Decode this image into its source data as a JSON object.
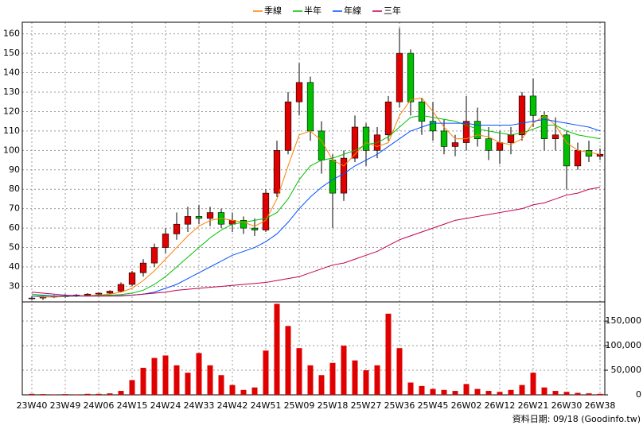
{
  "chart_data": {
    "type": "candlestick",
    "categories": [
      "23W40",
      null,
      null,
      "23W49",
      null,
      null,
      "24W06",
      null,
      null,
      "24W15",
      null,
      null,
      "24W24",
      null,
      null,
      "24W33",
      null,
      null,
      "24W42",
      null,
      null,
      "24W51",
      null,
      null,
      "25W09",
      null,
      null,
      "25W18",
      null,
      null,
      "25W27",
      null,
      null,
      "25W36",
      null,
      null,
      "25W45",
      null,
      null,
      "26W02",
      null,
      null,
      "26W12",
      null,
      null,
      "26W21",
      null,
      null,
      "26W30",
      null,
      null,
      "26W38"
    ],
    "ohlc": [
      [
        24,
        25,
        23,
        24
      ],
      [
        24,
        25,
        23,
        24.5
      ],
      [
        24.5,
        25.5,
        24,
        25
      ],
      [
        25,
        26,
        24,
        25
      ],
      [
        25,
        26,
        24.5,
        25.5
      ],
      [
        25.5,
        26.5,
        25,
        26
      ],
      [
        26,
        27,
        25,
        26.5
      ],
      [
        26.5,
        28,
        26,
        27.5
      ],
      [
        27.5,
        32,
        27,
        31
      ],
      [
        31,
        38,
        30,
        37
      ],
      [
        37,
        44,
        35,
        42
      ],
      [
        42,
        52,
        40,
        50
      ],
      [
        50,
        60,
        47,
        57
      ],
      [
        57,
        68,
        54,
        62
      ],
      [
        62,
        71,
        58,
        66
      ],
      [
        66,
        72,
        62,
        65
      ],
      [
        65,
        71,
        61,
        68
      ],
      [
        68,
        70,
        60,
        62
      ],
      [
        62,
        68,
        58,
        64
      ],
      [
        64,
        66,
        57,
        60
      ],
      [
        60,
        65,
        56,
        59
      ],
      [
        59,
        80,
        58,
        78
      ],
      [
        78,
        105,
        76,
        100
      ],
      [
        100,
        130,
        98,
        125
      ],
      [
        125,
        145,
        118,
        135
      ],
      [
        135,
        138,
        105,
        110
      ],
      [
        110,
        115,
        88,
        95
      ],
      [
        95,
        98,
        60,
        78
      ],
      [
        78,
        100,
        74,
        96
      ],
      [
        96,
        118,
        94,
        112
      ],
      [
        112,
        114,
        92,
        100
      ],
      [
        100,
        112,
        96,
        108
      ],
      [
        108,
        128,
        105,
        125
      ],
      [
        125,
        163,
        122,
        150
      ],
      [
        150,
        152,
        118,
        125
      ],
      [
        125,
        127,
        108,
        115
      ],
      [
        115,
        125,
        105,
        110
      ],
      [
        110,
        116,
        98,
        102
      ],
      [
        102,
        108,
        97,
        104
      ],
      [
        104,
        128,
        100,
        115
      ],
      [
        115,
        122,
        102,
        106
      ],
      [
        106,
        112,
        95,
        100
      ],
      [
        100,
        110,
        93,
        104
      ],
      [
        104,
        112,
        98,
        108
      ],
      [
        108,
        130,
        105,
        128
      ],
      [
        128,
        137,
        112,
        118
      ],
      [
        118,
        120,
        100,
        106
      ],
      [
        106,
        117,
        100,
        108
      ],
      [
        108,
        110,
        80,
        92
      ],
      [
        92,
        104,
        90,
        100
      ],
      [
        100,
        105,
        94,
        97
      ],
      [
        97,
        101,
        95,
        98
      ]
    ],
    "up_color": "#e00000",
    "down_color": "#00c000",
    "ylim": [
      22,
      166
    ],
    "yticks": [
      30,
      40,
      50,
      60,
      70,
      80,
      90,
      100,
      110,
      120,
      130,
      140,
      150,
      160
    ],
    "grid": true,
    "series": [
      {
        "name": "季線",
        "color": "#ff8000",
        "values": [
          25,
          24.5,
          24.5,
          24.7,
          25,
          25.2,
          25.5,
          26,
          27,
          29,
          33,
          38,
          44,
          50,
          56,
          61,
          64,
          65,
          64,
          63,
          61,
          64,
          75,
          92,
          108,
          110,
          105,
          95,
          92,
          98,
          104,
          102,
          104,
          118,
          126,
          127,
          120,
          112,
          106,
          106,
          108,
          107,
          104,
          103,
          106,
          114,
          118,
          113,
          104,
          100,
          99,
          98
        ]
      },
      {
        "name": "半年",
        "color": "#00c000",
        "values": [
          26,
          25.5,
          25,
          25,
          25,
          25,
          25.2,
          25.5,
          25.8,
          26.5,
          28,
          31,
          35,
          40,
          45,
          50,
          55,
          59,
          62,
          63,
          64,
          65,
          68,
          75,
          85,
          92,
          95,
          96,
          98,
          100,
          103,
          104,
          107,
          112,
          117,
          118,
          117,
          116,
          115,
          113,
          111,
          110,
          109,
          108,
          109,
          111,
          113,
          113,
          110,
          108,
          107,
          106
        ]
      },
      {
        "name": "年線",
        "color": "#0050ff",
        "values": [
          25,
          25,
          25,
          25,
          25,
          25,
          25,
          25,
          25.2,
          25.5,
          26,
          27,
          29,
          31,
          34,
          37,
          40,
          43,
          46,
          48,
          50,
          53,
          57,
          63,
          70,
          76,
          81,
          85,
          88,
          92,
          95,
          98,
          102,
          106,
          110,
          112,
          114,
          114,
          114,
          114,
          113,
          113,
          113,
          113,
          114,
          115,
          116,
          115,
          114,
          113,
          112,
          110
        ]
      },
      {
        "name": "三年",
        "color": "#c00050",
        "values": [
          27,
          26.5,
          26,
          25.5,
          25.2,
          25,
          25,
          25,
          25,
          25.5,
          26,
          26.5,
          27,
          28,
          28.5,
          29,
          29.5,
          30,
          30.5,
          31,
          31.5,
          32,
          33,
          34,
          35,
          37,
          39,
          41,
          42,
          44,
          46,
          48,
          51,
          54,
          56,
          58,
          60,
          62,
          64,
          65,
          66,
          67,
          68,
          69,
          70,
          72,
          73,
          75,
          77,
          78,
          80,
          81
        ]
      }
    ],
    "volume": {
      "color": "#e00000",
      "ylim": [
        0,
        189000
      ],
      "yticks": [
        0,
        {
          "value": 50000,
          "label": "50,000"
        },
        {
          "value": 100000,
          "label": "100,000"
        },
        {
          "value": 150000,
          "label": "150,000"
        }
      ],
      "values": [
        2000,
        1500,
        1000,
        1500,
        1000,
        2000,
        2000,
        3000,
        8000,
        30000,
        55000,
        75000,
        80000,
        60000,
        45000,
        85000,
        60000,
        40000,
        20000,
        10000,
        15000,
        90000,
        185000,
        140000,
        95000,
        60000,
        40000,
        65000,
        100000,
        70000,
        50000,
        60000,
        165000,
        95000,
        25000,
        18000,
        12000,
        10000,
        8000,
        22000,
        12000,
        8000,
        6000,
        10000,
        20000,
        45000,
        15000,
        8000,
        6000,
        4000,
        3000,
        2000
      ]
    },
    "footer": "資料日期: 09/18 (Goodinfo.tw)"
  }
}
